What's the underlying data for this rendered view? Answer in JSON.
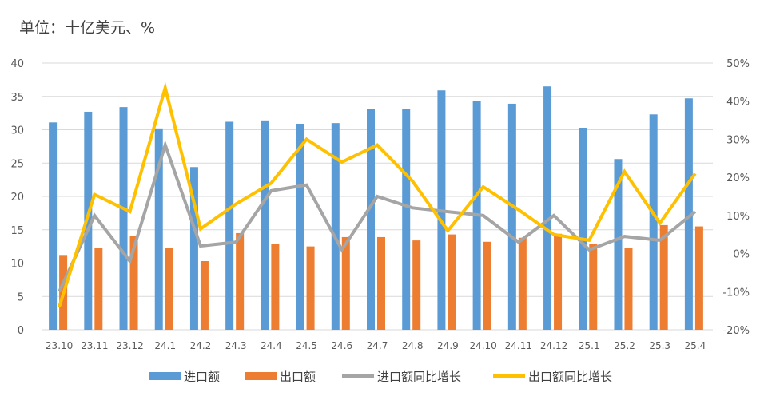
{
  "chart_data": {
    "type": "bar",
    "unit_label": "单位：十亿美元、%",
    "categories": [
      "23.10",
      "23.11",
      "23.12",
      "24.1",
      "24.2",
      "24.3",
      "24.4",
      "24.5",
      "24.6",
      "24.7",
      "24.8",
      "24.9",
      "24.10",
      "24.11",
      "24.12",
      "25.1",
      "25.2",
      "25.3",
      "25.4"
    ],
    "left_axis": {
      "min": 0,
      "max": 40,
      "ticks": [
        "0",
        "5",
        "10",
        "15",
        "20",
        "25",
        "30",
        "35",
        "40"
      ]
    },
    "right_axis": {
      "min": -20,
      "max": 50,
      "ticks": [
        "-20%",
        "-10%",
        "0%",
        "10%",
        "20%",
        "30%",
        "40%",
        "50%"
      ]
    },
    "series": [
      {
        "name": "进口额",
        "kind": "bar",
        "axis": "left",
        "color": "#5B9BD5",
        "values": [
          31.1,
          32.7,
          33.4,
          30.2,
          24.4,
          31.2,
          31.4,
          30.9,
          31.0,
          33.1,
          33.1,
          35.9,
          34.3,
          33.9,
          36.5,
          30.3,
          25.6,
          32.3,
          34.7
        ]
      },
      {
        "name": "出口额",
        "kind": "bar",
        "axis": "left",
        "color": "#ED7D31",
        "values": [
          11.1,
          12.3,
          14.1,
          12.3,
          10.3,
          14.5,
          12.9,
          12.5,
          13.9,
          13.9,
          13.4,
          14.3,
          13.2,
          13.8,
          14.4,
          12.9,
          12.3,
          15.7,
          15.5
        ]
      },
      {
        "name": "进口额同比增长",
        "kind": "line",
        "axis": "right",
        "color": "#A5A5A5",
        "values": [
          -10,
          10,
          -2,
          28.5,
          2,
          3,
          16.5,
          18,
          1,
          15,
          12,
          11,
          10,
          3,
          10,
          1,
          4.5,
          3.5,
          11
        ]
      },
      {
        "name": "出口额同比增长",
        "kind": "line",
        "axis": "right",
        "color": "#FFC000",
        "values": [
          -14,
          15.5,
          11,
          43.5,
          6.5,
          13,
          18.5,
          30,
          24,
          28.5,
          19,
          6,
          17.5,
          11.5,
          5,
          3.5,
          21.5,
          8,
          21
        ]
      }
    ],
    "legend_position": "bottom",
    "grid": true
  }
}
